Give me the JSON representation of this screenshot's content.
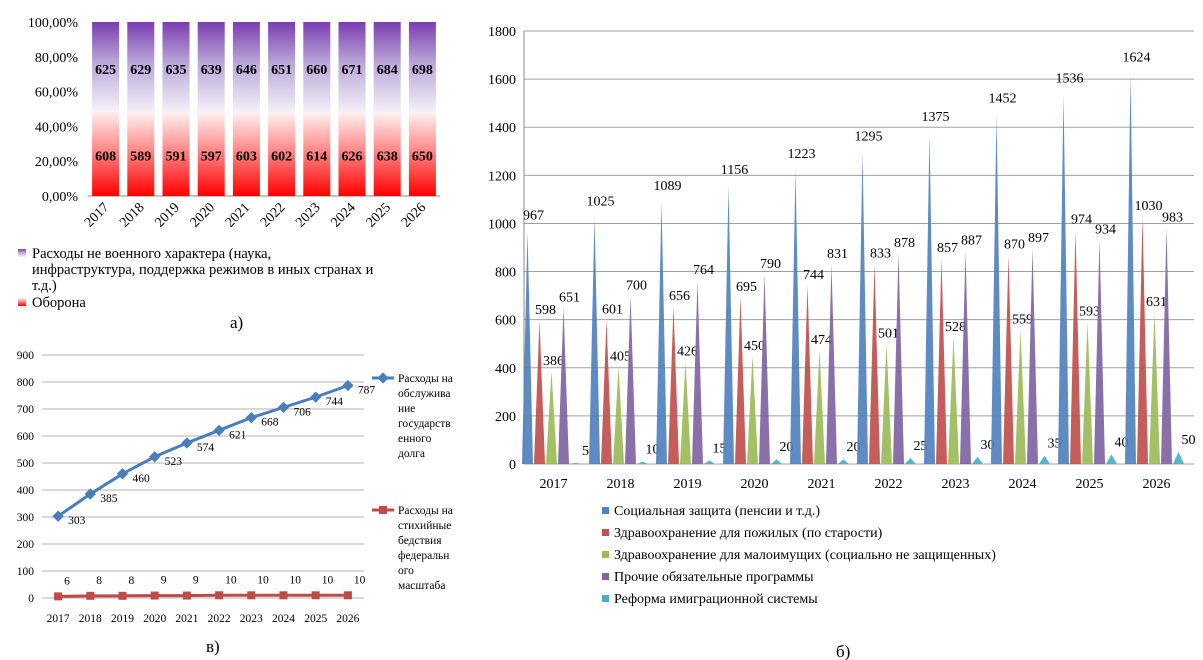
{
  "panel_labels": {
    "a": "а)",
    "b": "б)",
    "v": "в)"
  },
  "chart_data": [
    {
      "id": "a",
      "type": "bar",
      "stacked": "percent",
      "categories": [
        "2017",
        "2018",
        "2019",
        "2020",
        "2021",
        "2022",
        "2023",
        "2024",
        "2025",
        "2026"
      ],
      "series": [
        {
          "name": "Оборона",
          "values": [
            608,
            589,
            591,
            597,
            603,
            602,
            614,
            626,
            638,
            650
          ],
          "color": "#ff1a1a"
        },
        {
          "name": "Расходы не военного характера (наука, инфраструктура, поддержка режимов в иных странах и т.д.)",
          "values": [
            625,
            629,
            635,
            639,
            646,
            651,
            660,
            671,
            684,
            698
          ],
          "color": "#7b3fb0"
        }
      ],
      "yticks": [
        "0,00%",
        "20,00%",
        "40,00%",
        "60,00%",
        "80,00%",
        "100,00%"
      ],
      "ylim": [
        0,
        100
      ],
      "legend": "bottom"
    },
    {
      "id": "b",
      "type": "bar",
      "categories": [
        "2017",
        "2018",
        "2019",
        "2020",
        "2021",
        "2022",
        "2023",
        "2024",
        "2025",
        "2026"
      ],
      "series": [
        {
          "name": "Социальная защита (пенсии и т.д.)",
          "values": [
            967,
            1025,
            1089,
            1156,
            1223,
            1295,
            1375,
            1452,
            1536,
            1624
          ],
          "color": "#4f81bd"
        },
        {
          "name": "Здравоохранение для пожилых (по старости)",
          "values": [
            598,
            601,
            656,
            695,
            744,
            833,
            857,
            870,
            974,
            1030
          ],
          "color": "#c0504d"
        },
        {
          "name": "Здравоохранение для малоимущих (социально не защищенных)",
          "values": [
            386,
            405,
            426,
            450,
            474,
            501,
            528,
            559,
            593,
            631
          ],
          "color": "#9bbb59"
        },
        {
          "name": "Прочие обязательные программы",
          "values": [
            651,
            700,
            764,
            790,
            831,
            878,
            887,
            897,
            934,
            983
          ],
          "color": "#8064a2"
        },
        {
          "name": "Реформа имиграционной системы",
          "values": [
            5,
            10,
            15,
            20,
            20,
            25,
            30,
            35,
            40,
            50
          ],
          "color": "#4bacc6"
        }
      ],
      "yticks": [
        "0",
        "200",
        "400",
        "600",
        "800",
        "1000",
        "1200",
        "1400",
        "1600",
        "1800"
      ],
      "ylim": [
        0,
        1800
      ],
      "grid": true,
      "legend": "bottom"
    },
    {
      "id": "v",
      "type": "line",
      "categories": [
        "2017",
        "2018",
        "2019",
        "2020",
        "2021",
        "2022",
        "2023",
        "2024",
        "2025",
        "2026"
      ],
      "series": [
        {
          "name": "Расходы на обслуживание государственного долга",
          "legend_lines": [
            "Расходы на",
            "обслужива",
            "ние",
            "государств",
            "енного",
            "долга"
          ],
          "values": [
            303,
            385,
            460,
            523,
            574,
            621,
            668,
            706,
            744,
            787
          ],
          "color": "#4a7ebb"
        },
        {
          "name": "Расходы на стихийные бедствия федерального масштаба",
          "legend_lines": [
            "Расходы на",
            "стихийные",
            "бедствия",
            "федеральн",
            "ого",
            "масштаба"
          ],
          "values": [
            6,
            8,
            8,
            9,
            9,
            10,
            10,
            10,
            10,
            10
          ],
          "color": "#be4b48"
        }
      ],
      "yticks": [
        "0",
        "100",
        "200",
        "300",
        "400",
        "500",
        "600",
        "700",
        "800",
        "900"
      ],
      "ylim": [
        0,
        900
      ],
      "grid": true,
      "legend": "right"
    }
  ]
}
